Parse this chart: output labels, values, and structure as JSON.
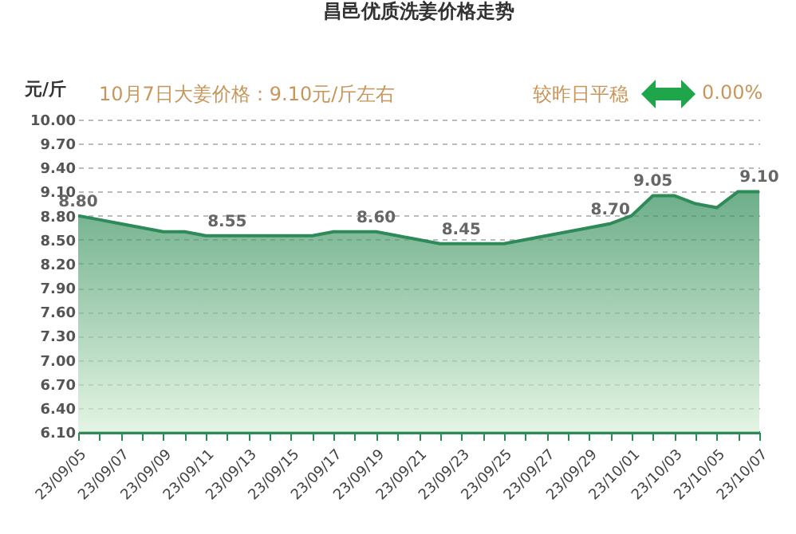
{
  "chart_data": {
    "type": "area",
    "title": "昌邑优质洗姜价格走势",
    "ylabel": "元/斤",
    "annotations": [
      "10月7日大姜价格：9.10元/斤左右",
      "较昨日平稳",
      "0.00%"
    ],
    "categories": [
      "23/09/05",
      null,
      "23/09/07",
      null,
      "23/09/09",
      null,
      "23/09/11",
      null,
      "23/09/13",
      null,
      "23/09/15",
      null,
      "23/09/17",
      null,
      "23/09/19",
      null,
      "23/09/21",
      null,
      "23/09/23",
      null,
      "23/09/25",
      null,
      "23/09/27",
      null,
      "23/09/29",
      null,
      "23/10/01",
      null,
      "23/10/03",
      null,
      "23/10/05",
      null,
      "23/10/07"
    ],
    "series": [
      {
        "color": "#2e8b57",
        "values": [
          8.8,
          8.75,
          8.7,
          8.65,
          8.6,
          8.6,
          8.55,
          8.55,
          8.55,
          8.55,
          8.55,
          8.55,
          8.6,
          8.6,
          8.6,
          8.55,
          8.5,
          8.45,
          8.45,
          8.45,
          8.45,
          8.5,
          8.55,
          8.6,
          8.65,
          8.7,
          8.8,
          9.05,
          9.05,
          8.95,
          8.9,
          9.1,
          9.1
        ],
        "value_labels": [
          "8.80",
          null,
          null,
          null,
          null,
          null,
          null,
          "8.55",
          null,
          null,
          null,
          null,
          null,
          null,
          "8.60",
          null,
          null,
          null,
          "8.45",
          null,
          null,
          null,
          null,
          null,
          null,
          "8.70",
          null,
          "9.05",
          null,
          null,
          null,
          null,
          "9.10"
        ]
      }
    ],
    "ylim": [
      6.1,
      10.0
    ],
    "yticks": [
      {
        "value": 6.1,
        "label": "6.10"
      },
      {
        "value": 6.4,
        "label": "6.40"
      },
      {
        "value": 6.7,
        "label": "6.70"
      },
      {
        "value": 7.0,
        "label": "7.00"
      },
      {
        "value": 7.3,
        "label": "7.30"
      },
      {
        "value": 7.6,
        "label": "7.60"
      },
      {
        "value": 7.9,
        "label": "7.90"
      },
      {
        "value": 8.2,
        "label": "8.20"
      },
      {
        "value": 8.5,
        "label": "8.50"
      },
      {
        "value": 8.8,
        "label": "8.80"
      },
      {
        "value": 9.1,
        "label": "9.10"
      },
      {
        "value": 9.4,
        "label": "9.40"
      },
      {
        "value": 9.7,
        "label": "9.70"
      },
      {
        "value": 10.0,
        "label": "10.00"
      }
    ],
    "grid": "y"
  }
}
